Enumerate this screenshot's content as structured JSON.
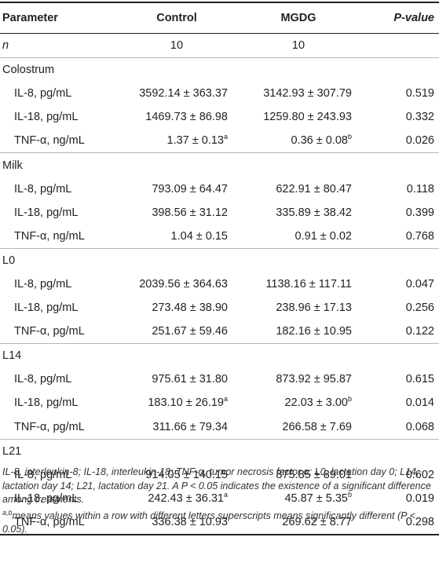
{
  "header": {
    "parameter": "Parameter",
    "control": "Control",
    "mgdg": "MGDG",
    "pvalue": "P-value"
  },
  "n_row": {
    "label": "n",
    "control": "10",
    "mgdg": "10"
  },
  "groups": [
    {
      "label": "Colostrum",
      "rows": [
        {
          "param": "IL-8, pg/mL",
          "control": "3592.14 ± 363.37",
          "control_sup": "",
          "mgdg": "3142.93 ± 307.79",
          "mgdg_sup": "",
          "p": "0.519"
        },
        {
          "param": "IL-18, pg/mL",
          "control": "1469.73 ± 86.98",
          "control_sup": "",
          "mgdg": "1259.80 ± 243.93",
          "mgdg_sup": "",
          "p": "0.332"
        },
        {
          "param": "TNF-α, ng/mL",
          "control": "1.37 ± 0.13",
          "control_sup": "a",
          "mgdg": "0.36 ± 0.08",
          "mgdg_sup": "b",
          "p": "0.026"
        }
      ]
    },
    {
      "label": "Milk",
      "rows": [
        {
          "param": "IL-8, pg/mL",
          "control": "793.09 ± 64.47",
          "control_sup": "",
          "mgdg": "622.91 ± 80.47",
          "mgdg_sup": "",
          "p": "0.118"
        },
        {
          "param": "IL-18, pg/mL",
          "control": "398.56 ± 31.12",
          "control_sup": "",
          "mgdg": "335.89 ± 38.42",
          "mgdg_sup": "",
          "p": "0.399"
        },
        {
          "param": "TNF-α, ng/mL",
          "control": "1.04 ± 0.15",
          "control_sup": "",
          "mgdg": "0.91 ± 0.02",
          "mgdg_sup": "",
          "p": "0.768"
        }
      ]
    },
    {
      "label": "L0",
      "rows": [
        {
          "param": "IL-8, pg/mL",
          "control": "2039.56 ± 364.63",
          "control_sup": "",
          "mgdg": "1138.16 ± 117.11",
          "mgdg_sup": "",
          "p": "0.047"
        },
        {
          "param": "IL-18, pg/mL",
          "control": "273.48 ± 38.90",
          "control_sup": "",
          "mgdg": "238.96 ± 17.13",
          "mgdg_sup": "",
          "p": "0.256"
        },
        {
          "param": "TNF-α, pg/mL",
          "control": "251.67 ± 59.46",
          "control_sup": "",
          "mgdg": "182.16 ± 10.95",
          "mgdg_sup": "",
          "p": "0.122"
        }
      ]
    },
    {
      "label": "L14",
      "rows": [
        {
          "param": "IL-8, pg/mL",
          "control": "975.61 ± 31.80",
          "control_sup": "",
          "mgdg": "873.92 ± 95.87",
          "mgdg_sup": "",
          "p": "0.615"
        },
        {
          "param": "IL-18, pg/mL",
          "control": "183.10 ± 26.19",
          "control_sup": "a",
          "mgdg": "22.03 ± 3.00",
          "mgdg_sup": "b",
          "p": "0.014"
        },
        {
          "param": "TNF-α, pg/mL",
          "control": "311.66 ± 79.34",
          "control_sup": "",
          "mgdg": "266.58 ± 7.69",
          "mgdg_sup": "",
          "p": "0.068"
        }
      ]
    },
    {
      "label": "L21",
      "rows": [
        {
          "param": "IL-8, pg/mL",
          "control": "914.05 ± 140.15",
          "control_sup": "",
          "mgdg": "875.85 ± 89.01",
          "mgdg_sup": "",
          "p": "0.602"
        },
        {
          "param": "IL-18, pg/mL",
          "control": "242.43 ± 36.31",
          "control_sup": "a",
          "mgdg": "45.87 ± 5.35",
          "mgdg_sup": "b",
          "p": "0.019"
        },
        {
          "param": "TNF-α, pg/mL",
          "control": "336.38 ± 10.93",
          "control_sup": "",
          "mgdg": "269.62 ± 8.77",
          "mgdg_sup": "",
          "p": "0.298"
        }
      ]
    }
  ],
  "footnotes": {
    "abbrev": "IL-8, interleukin-8; IL-18, interleukin-18; TNF-α, tumor necrosis factor α; L0, lactation day 0; L14, lactation day 14; L21, lactation day 21. A P < 0.05 indicates the existence of a significant difference among treatments.",
    "letters_sup": "a,b",
    "letters": "means values within a row with different letters superscripts means significantly different (P < 0.05)."
  }
}
